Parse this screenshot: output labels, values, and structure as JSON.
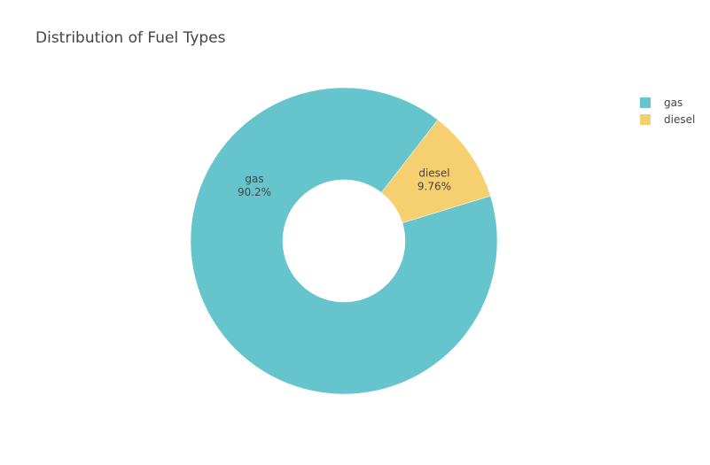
{
  "chart_data": {
    "type": "pie",
    "hole": true,
    "title": "Distribution of Fuel Types",
    "categories": [
      "gas",
      "diesel"
    ],
    "values": [
      90.24,
      9.76
    ],
    "value_labels": [
      "90.2%",
      "9.76%"
    ],
    "colors": [
      "#66c5cc",
      "#f6cf71"
    ],
    "legend_position": "top-right"
  }
}
